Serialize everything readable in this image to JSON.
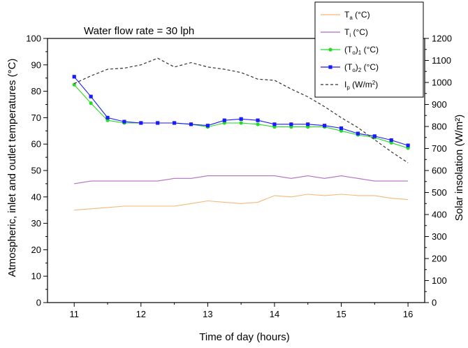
{
  "chart_data": {
    "type": "line",
    "annotation": "Water flow rate = 30 lph",
    "xlabel": "Time of day (hours)",
    "ylabel_left": "Atmospheric, inlet and outlet temperatures (°C)",
    "ylabel_right": "Solar insolation (W/m²)",
    "xlim": [
      10.6,
      16.25
    ],
    "ylim_left": [
      0,
      100
    ],
    "ylim_right": [
      0,
      1200
    ],
    "x_ticks": [
      "11",
      "12",
      "13",
      "14",
      "15",
      "16"
    ],
    "y_left_ticks": [
      "0",
      "10",
      "20",
      "30",
      "40",
      "50",
      "60",
      "70",
      "80",
      "90",
      "100"
    ],
    "y_right_ticks": [
      "0",
      "100",
      "200",
      "300",
      "400",
      "500",
      "600",
      "700",
      "800",
      "900",
      "1000",
      "1100",
      "1200"
    ],
    "x": [
      11,
      11.25,
      11.5,
      11.75,
      12,
      12.25,
      12.5,
      12.75,
      13,
      13.25,
      13.5,
      13.75,
      14,
      14.25,
      14.5,
      14.75,
      15,
      15.25,
      15.5,
      15.75,
      16
    ],
    "series": [
      {
        "name": "Ta (°C)",
        "legend_main": "T",
        "legend_sub": "a",
        "legend_tail": " (°C)",
        "axis": "left",
        "color": "#f5b87a",
        "style": "solid",
        "marker": "none",
        "values": [
          35,
          35.5,
          36,
          36.5,
          36.5,
          36.5,
          36.5,
          37.5,
          38.5,
          38,
          37.5,
          38,
          40.5,
          40,
          41,
          40.5,
          41,
          40.5,
          40.5,
          39.5,
          39
        ]
      },
      {
        "name": "Ti (°C)",
        "legend_main": "T",
        "legend_sub": "i",
        "legend_tail": " (°C)",
        "axis": "left",
        "color": "#b36bc4",
        "style": "solid",
        "marker": "none",
        "values": [
          45,
          46,
          46,
          46,
          46,
          46,
          47,
          47,
          48,
          48,
          48,
          48,
          48,
          47,
          48,
          47,
          48,
          47,
          46,
          46,
          46
        ]
      },
      {
        "name": "(To)1 (°C)",
        "legend_main": "(T",
        "legend_sub": "o",
        "legend_mid": ")",
        "legend_sub2": "1",
        "legend_tail": " (°C)",
        "axis": "left",
        "color": "#22dd22",
        "style": "solid",
        "marker": "circle",
        "values": [
          82.5,
          75.5,
          69,
          68,
          68,
          68,
          68,
          67.5,
          66.5,
          68,
          68,
          67.5,
          66.5,
          66.5,
          66.5,
          66.5,
          65,
          63.5,
          62.5,
          60.5,
          58.5
        ]
      },
      {
        "name": "(To)2 (°C)",
        "legend_main": "(T",
        "legend_sub": "o",
        "legend_mid": ")",
        "legend_sub2": "2",
        "legend_tail": " (°C)",
        "axis": "left",
        "color": "#1a1aff",
        "style": "solid",
        "marker": "square",
        "values": [
          85.5,
          78,
          70,
          68.5,
          68,
          68,
          68,
          67.5,
          67,
          69,
          69.5,
          69,
          67.5,
          67.5,
          67.5,
          67,
          66,
          64,
          63,
          61.5,
          59.5
        ]
      },
      {
        "name": "Ip (W/m²)",
        "legend_main": "I",
        "legend_sub": "p",
        "legend_tail": " (W/m",
        "legend_sup": "2",
        "legend_end": ")",
        "axis": "right",
        "color": "#333333",
        "style": "dashed",
        "marker": "none",
        "values": [
          995,
          1030,
          1060,
          1065,
          1080,
          1110,
          1070,
          1090,
          1070,
          1060,
          1045,
          1015,
          1010,
          970,
          935,
          890,
          840,
          795,
          740,
          685,
          635
        ]
      }
    ]
  }
}
